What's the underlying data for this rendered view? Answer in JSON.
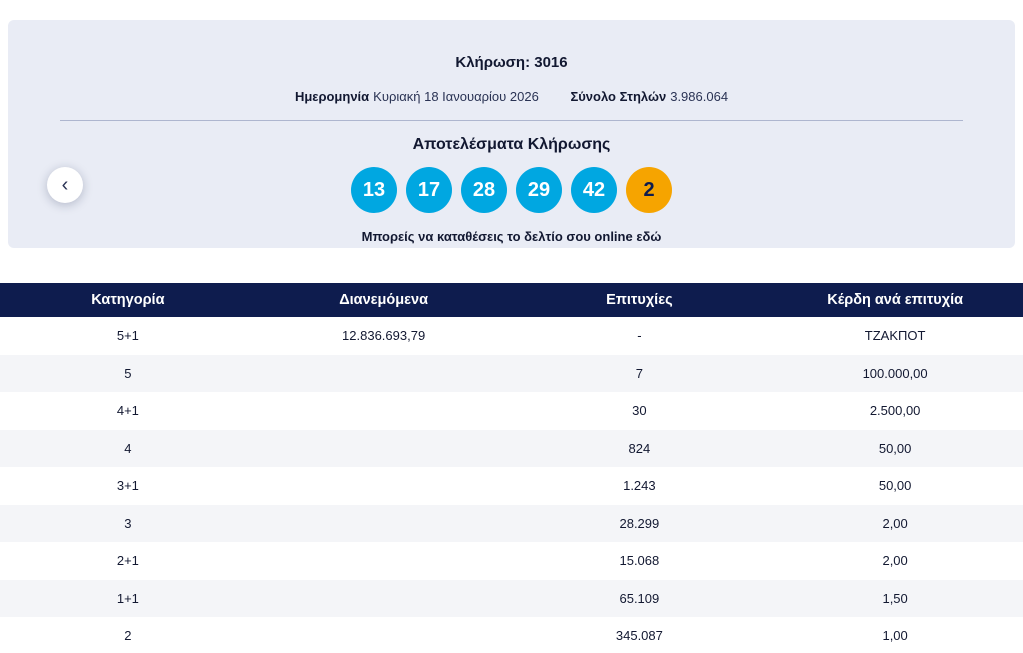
{
  "draw": {
    "title_label": "Κλήρωση:",
    "title_number": "3016",
    "date_label": "Ημερομηνία",
    "date_value": "Κυριακή 18 Ιανουαρίου 2026",
    "columns_label": "Σύνολο Στηλών",
    "columns_value": "3.986.064",
    "results_heading": "Αποτελέσματα Κλήρωσης",
    "numbers": [
      "13",
      "17",
      "28",
      "29",
      "42"
    ],
    "joker": "2",
    "cta_text": "Μπορείς να καταθέσεις το δελτίο σου online",
    "cta_link": "εδώ"
  },
  "nav": {
    "prev_icon": "‹"
  },
  "table": {
    "headers": [
      "Κατηγορία",
      "Διανεμόμενα",
      "Επιτυχίες",
      "Κέρδη ανά επιτυχία"
    ],
    "rows": [
      [
        "5+1",
        "12.836.693,79",
        "-",
        "ΤΖΑΚΠΟΤ"
      ],
      [
        "5",
        "",
        "7",
        "100.000,00"
      ],
      [
        "4+1",
        "",
        "30",
        "2.500,00"
      ],
      [
        "4",
        "",
        "824",
        "50,00"
      ],
      [
        "3+1",
        "",
        "1.243",
        "50,00"
      ],
      [
        "3",
        "",
        "28.299",
        "2,00"
      ],
      [
        "2+1",
        "",
        "15.068",
        "2,00"
      ],
      [
        "1+1",
        "",
        "65.109",
        "1,50"
      ],
      [
        "2",
        "",
        "345.087",
        "1,00"
      ]
    ]
  },
  "colors": {
    "navy": "#0e1c4e",
    "ball_blue": "#00a7e1",
    "joker_orange": "#f6a400",
    "card_bg": "#e9ecf5",
    "row_alt": "#f4f5f8"
  }
}
